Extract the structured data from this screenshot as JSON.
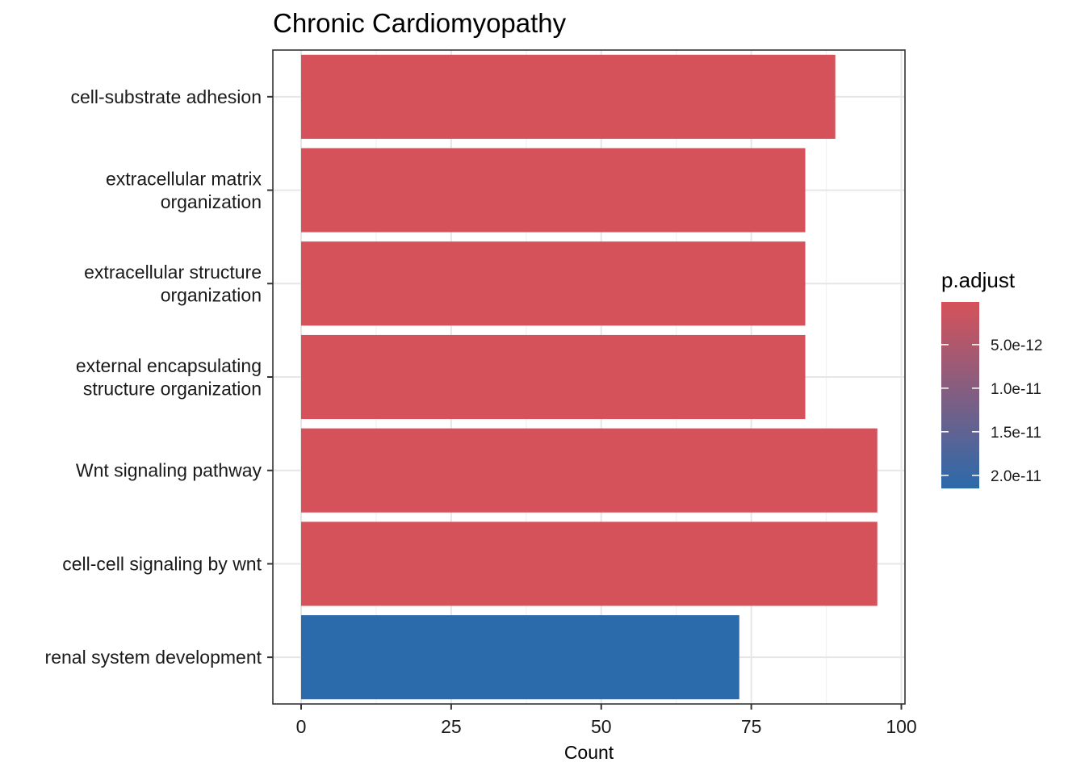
{
  "chart_data": {
    "type": "bar",
    "orientation": "horizontal",
    "title": "Chronic Cardiomyopathy",
    "xlabel": "Count",
    "ylabel": "",
    "xlim": [
      0,
      100
    ],
    "xticks": [
      0,
      25,
      50,
      75,
      100
    ],
    "grid": true,
    "legend_position": "right",
    "categories": [
      "cell-substrate adhesion",
      "extracellular matrix organization",
      "extracellular structure organization",
      "external encapsulating structure organization",
      "Wnt signaling pathway",
      "cell-cell signaling by wnt",
      "renal system development"
    ],
    "category_lines": [
      [
        "cell-substrate adhesion"
      ],
      [
        "extracellular matrix",
        "organization"
      ],
      [
        "extracellular structure",
        "organization"
      ],
      [
        "external encapsulating",
        "structure organization"
      ],
      [
        "Wnt signaling pathway"
      ],
      [
        "cell-cell signaling by wnt"
      ],
      [
        "renal system development"
      ]
    ],
    "values": [
      89,
      84,
      84,
      84,
      96,
      96,
      73
    ],
    "p_adjust": [
      1e-13,
      1e-13,
      1e-13,
      1e-13,
      2e-13,
      2e-13,
      2.15e-11
    ],
    "colorbar": {
      "title": "p.adjust",
      "low_color": "#D6525A",
      "high_color": "#2B6AAB",
      "range": [
        1e-13,
        2.15e-11
      ],
      "ticks": [
        5e-12,
        1e-11,
        1.5e-11,
        2e-11
      ],
      "tick_labels": [
        "5.0e-12",
        "1.0e-11",
        "1.5e-11",
        "2.0e-11"
      ]
    }
  }
}
